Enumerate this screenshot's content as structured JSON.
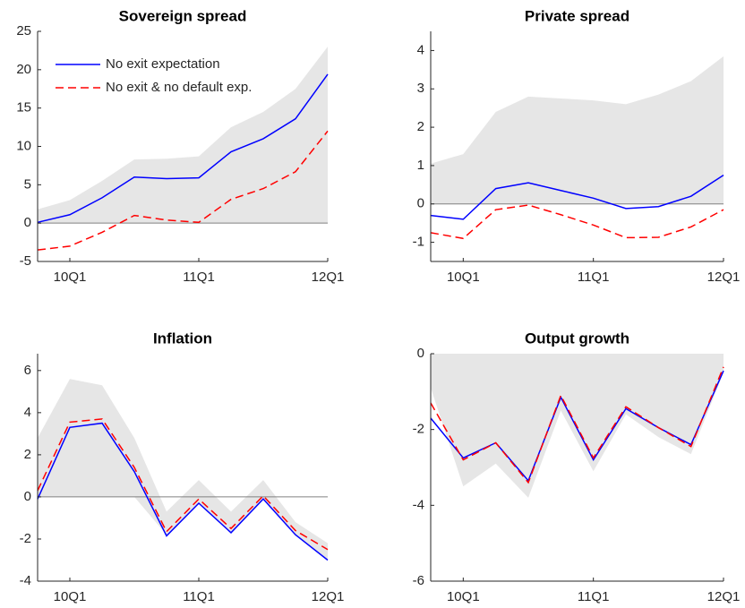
{
  "chart_data": [
    {
      "type": "line",
      "title": "Sovereign spread",
      "categories": [
        null,
        "10Q1",
        null,
        null,
        null,
        "11Q1",
        null,
        null,
        null,
        "12Q1"
      ],
      "ylim": [
        -5,
        25
      ],
      "yticks": [
        -5,
        0,
        5,
        10,
        15,
        20,
        25
      ],
      "hline": 0,
      "legend": "upper left",
      "band": {
        "color": "#e6e6e6",
        "lower": [
          0,
          0,
          0,
          0,
          0,
          0,
          0,
          0,
          0,
          0
        ],
        "upper": [
          1.8,
          3.0,
          5.5,
          8.3,
          8.4,
          8.7,
          12.5,
          14.5,
          17.5,
          23
        ]
      },
      "series": [
        {
          "name": "No exit expectation",
          "color": "#0000ff",
          "dash": false,
          "values": [
            0.1,
            1.1,
            3.3,
            6.0,
            5.8,
            5.9,
            9.3,
            11.0,
            13.6,
            19.4
          ]
        },
        {
          "name": "No exit & no default exp.",
          "color": "#ff0000",
          "dash": true,
          "values": [
            -3.5,
            -3.0,
            -1.2,
            1.0,
            0.4,
            0.1,
            3.1,
            4.5,
            6.7,
            12.0
          ]
        }
      ]
    },
    {
      "type": "line",
      "title": "Private spread",
      "categories": [
        null,
        "10Q1",
        null,
        null,
        null,
        "11Q1",
        null,
        null,
        null,
        "12Q1"
      ],
      "ylim": [
        -1.5,
        4.5
      ],
      "yticks": [
        -1,
        0,
        1,
        2,
        3,
        4
      ],
      "hline": 0,
      "band": {
        "color": "#e6e6e6",
        "lower": [
          0,
          0,
          0,
          0,
          0,
          0,
          0,
          0,
          0,
          0
        ],
        "upper": [
          1.05,
          1.3,
          2.4,
          2.8,
          2.75,
          2.7,
          2.6,
          2.85,
          3.2,
          3.85
        ]
      },
      "series": [
        {
          "color": "#0000ff",
          "dash": false,
          "values": [
            -0.3,
            -0.4,
            0.4,
            0.55,
            0.35,
            0.15,
            -0.12,
            -0.07,
            0.2,
            0.75
          ]
        },
        {
          "color": "#ff0000",
          "dash": true,
          "values": [
            -0.75,
            -0.9,
            -0.15,
            -0.03,
            -0.28,
            -0.55,
            -0.88,
            -0.87,
            -0.6,
            -0.15
          ]
        }
      ]
    },
    {
      "type": "line",
      "title": "Inflation",
      "categories": [
        null,
        "10Q1",
        null,
        null,
        null,
        "11Q1",
        null,
        null,
        null,
        "12Q1"
      ],
      "ylim": [
        -4,
        6.8
      ],
      "yticks": [
        -4,
        -2,
        0,
        2,
        4,
        6
      ],
      "hline": 0,
      "band": {
        "color": "#e6e6e6",
        "lower": [
          0,
          0,
          0,
          0,
          -1.8,
          -0.3,
          -1.7,
          -0.1,
          -1.8,
          -3.0
        ],
        "upper": [
          2.8,
          5.6,
          5.3,
          2.8,
          -0.7,
          0.8,
          -0.7,
          0.8,
          -1.2,
          -2.2
        ]
      },
      "series": [
        {
          "color": "#0000ff",
          "dash": false,
          "values": [
            -0.1,
            3.3,
            3.5,
            1.2,
            -1.85,
            -0.3,
            -1.7,
            -0.1,
            -1.8,
            -3.0
          ]
        },
        {
          "color": "#ff0000",
          "dash": true,
          "values": [
            0.3,
            3.55,
            3.7,
            1.4,
            -1.65,
            -0.1,
            -1.5,
            0.05,
            -1.6,
            -2.5
          ]
        }
      ]
    },
    {
      "type": "line",
      "title": "Output growth",
      "categories": [
        null,
        "10Q1",
        null,
        null,
        null,
        "11Q1",
        null,
        null,
        null,
        "12Q1"
      ],
      "ylim": [
        -6,
        0
      ],
      "yticks": [
        -6,
        -4,
        -2,
        0
      ],
      "band": {
        "color": "#e6e6e6",
        "lower": [
          -0.9,
          -3.5,
          -2.9,
          -3.8,
          -1.5,
          -3.1,
          -1.6,
          -2.2,
          -2.65,
          -0.5
        ],
        "upper": [
          0,
          0,
          0,
          0,
          0,
          0,
          0,
          0,
          0,
          0
        ]
      },
      "series": [
        {
          "color": "#0000ff",
          "dash": false,
          "values": [
            -1.7,
            -2.75,
            -2.35,
            -3.35,
            -1.15,
            -2.8,
            -1.45,
            -1.95,
            -2.4,
            -0.45
          ]
        },
        {
          "color": "#ff0000",
          "dash": true,
          "values": [
            -1.3,
            -2.8,
            -2.35,
            -3.4,
            -1.1,
            -2.75,
            -1.4,
            -1.95,
            -2.45,
            -0.35
          ]
        }
      ]
    }
  ]
}
